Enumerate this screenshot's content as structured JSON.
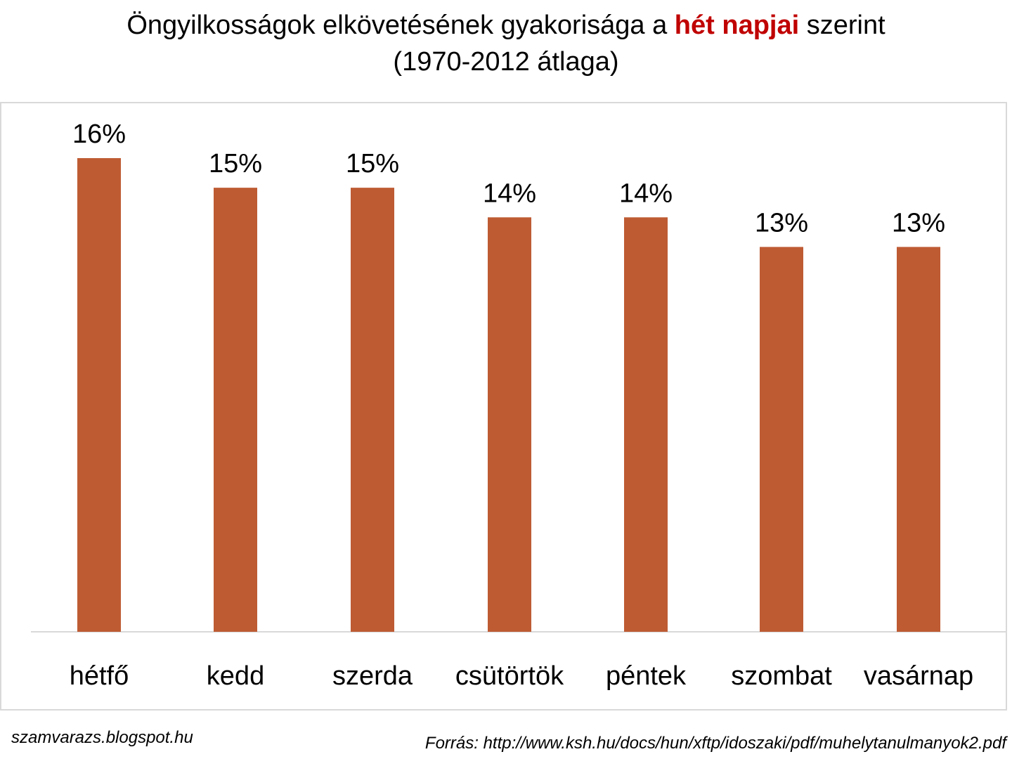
{
  "title": {
    "line1_before": "Öngyilkosságok elkövetésének gyakorisága a ",
    "line1_highlight": "hét napjai",
    "line1_after": " szerint",
    "line2": "(1970-2012 átlaga)"
  },
  "colors": {
    "bar": "#be5b33",
    "highlight": "#c00000",
    "axis": "#d9d9d9"
  },
  "footer": {
    "left": "szamvarazs.blogspot.hu",
    "right": "Forrás: http://www.ksh.hu/docs/hun/xftp/idoszaki/pdf/muhelytanulmanyok2.pdf"
  },
  "chart_data": {
    "type": "bar",
    "categories": [
      "hétfő",
      "kedd",
      "szerda",
      "csütörtök",
      "péntek",
      "szombat",
      "vasárnap"
    ],
    "values": [
      16,
      15,
      15,
      14,
      14,
      13,
      13
    ],
    "data_labels": [
      "16%",
      "15%",
      "15%",
      "14%",
      "14%",
      "13%",
      "13%"
    ],
    "ylim": [
      0,
      16
    ],
    "grid": false,
    "legend": "none"
  }
}
